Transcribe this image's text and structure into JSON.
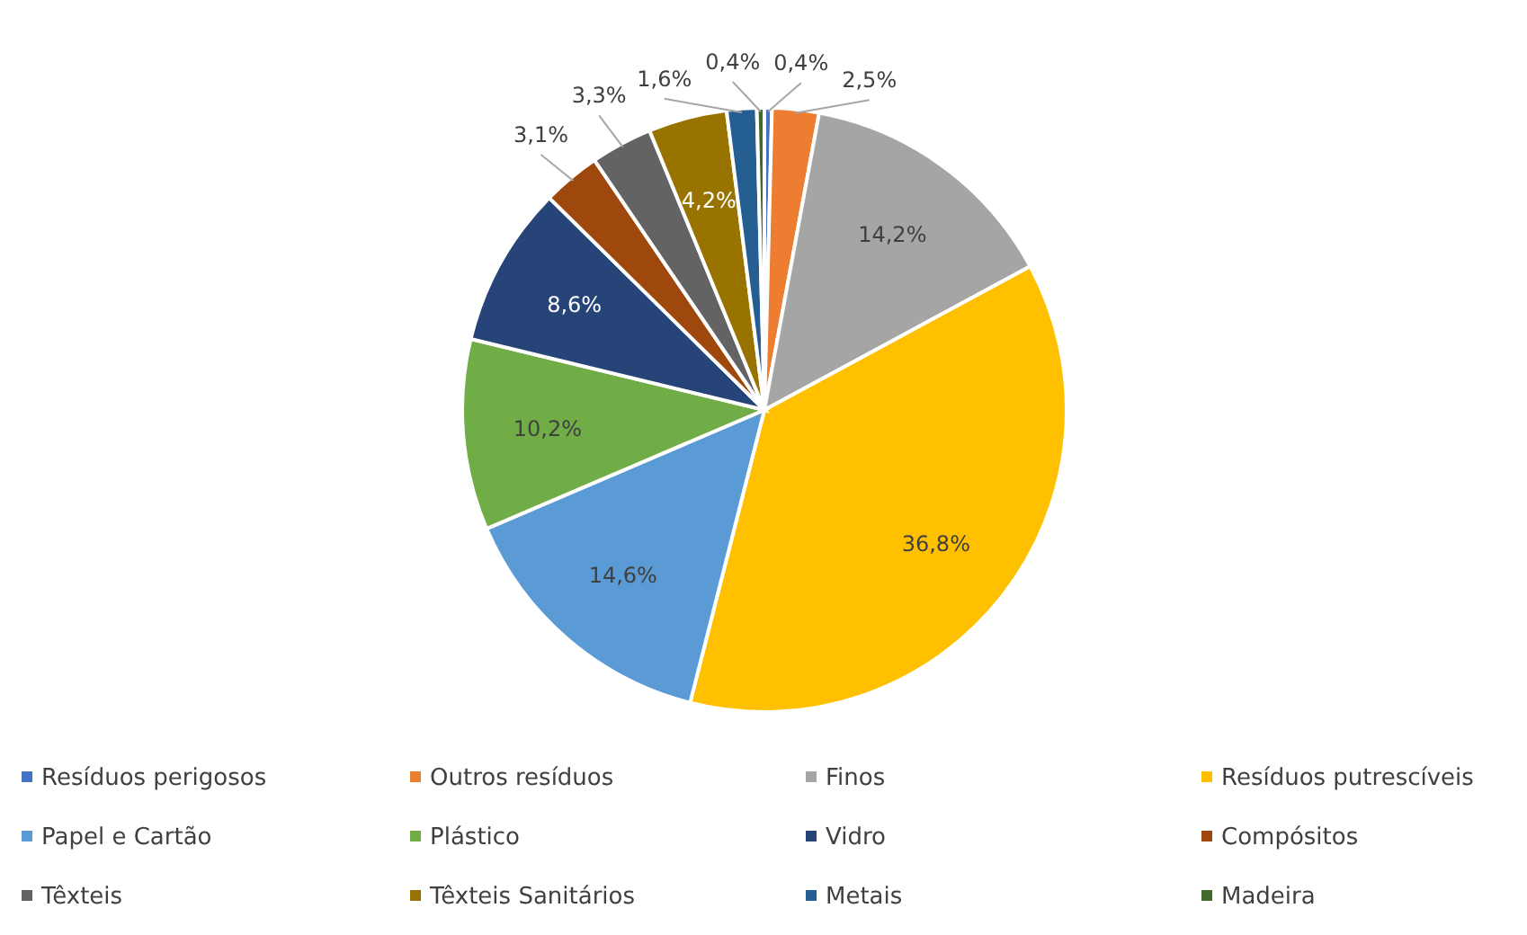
{
  "chart_data": {
    "type": "pie",
    "categories": [
      "Resíduos perigosos",
      "Outros resíduos",
      "Finos",
      "Resíduos putrescíveis",
      "Papel e Cartão",
      "Plástico",
      "Vidro",
      "Compósitos",
      "Têxteis",
      "Têxteis Sanitários",
      "Metais",
      "Madeira"
    ],
    "values": [
      0.4,
      2.5,
      14.2,
      36.8,
      14.6,
      10.2,
      8.6,
      3.1,
      3.3,
      4.2,
      1.6,
      0.4
    ],
    "value_labels": [
      "0,4%",
      "2,5%",
      "14,2%",
      "36,8%",
      "14,6%",
      "10,2%",
      "8,6%",
      "3,1%",
      "3,3%",
      "4,2%",
      "1,6%",
      "0,4%"
    ],
    "colors": [
      "#4472c4",
      "#ed7d31",
      "#a5a5a5",
      "#ffc000",
      "#5b9bd5",
      "#70ad47",
      "#264478",
      "#9e480e",
      "#636363",
      "#997300",
      "#255e91",
      "#43682b"
    ],
    "legend": "bottom"
  }
}
